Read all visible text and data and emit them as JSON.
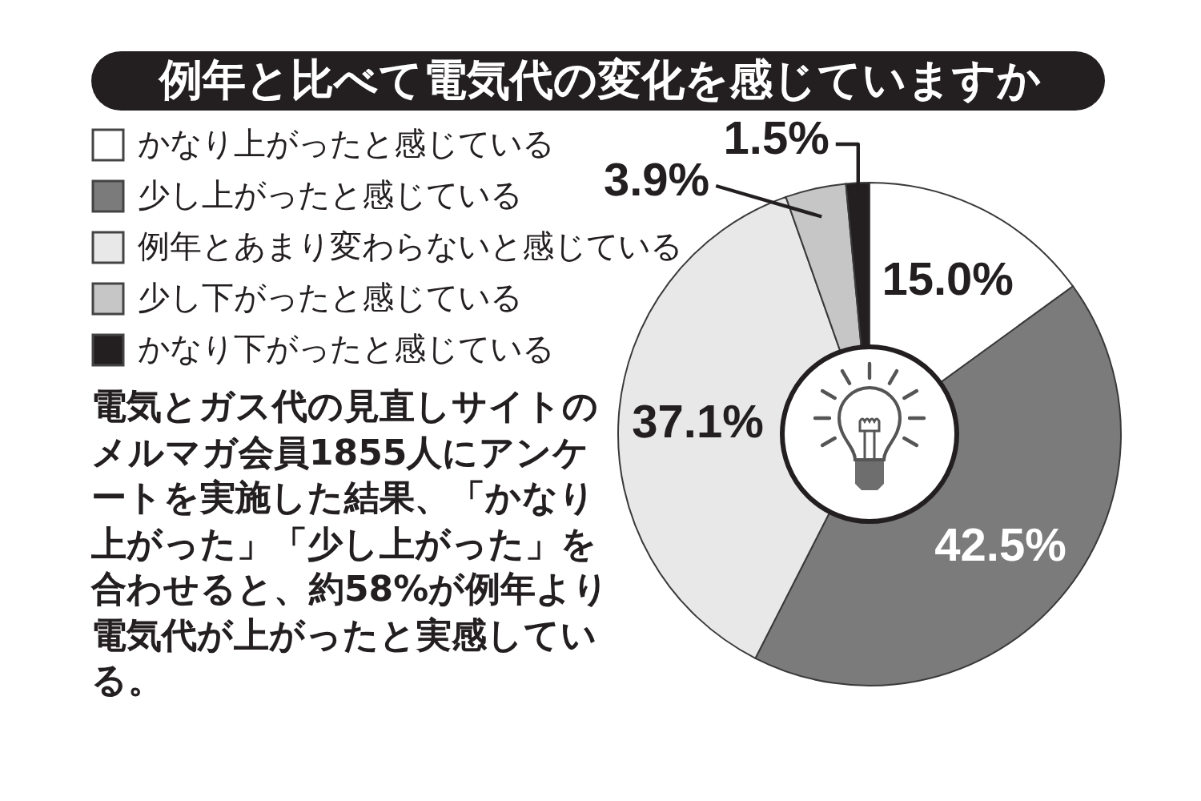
{
  "chart_data": {
    "type": "donut",
    "title": "例年と比べて電気代の変化を感じていますか",
    "categories": [
      "かなり上がったと感じている",
      "少し上がったと感じている",
      "例年とあまり変わらないと感じている",
      "少し下がったと感じている",
      "かなり下がったと感じている"
    ],
    "values": [
      15.0,
      42.5,
      37.1,
      3.9,
      1.5
    ],
    "colors": [
      "#ffffff",
      "#7b7b7b",
      "#e8e8e8",
      "#c6c6c6",
      "#231f20"
    ],
    "value_labels": [
      "15.0%",
      "42.5%",
      "37.1%",
      "3.9%",
      "1.5%"
    ],
    "legend": "top left",
    "annotations": [
      "電気とガス代の見直しサイトのメルマガ会員1855人にアンケートを実施した結果、「かなり上がった」「少し上がった」を合わせると、約58%が例年より電気代が上がったと実感している。"
    ]
  }
}
